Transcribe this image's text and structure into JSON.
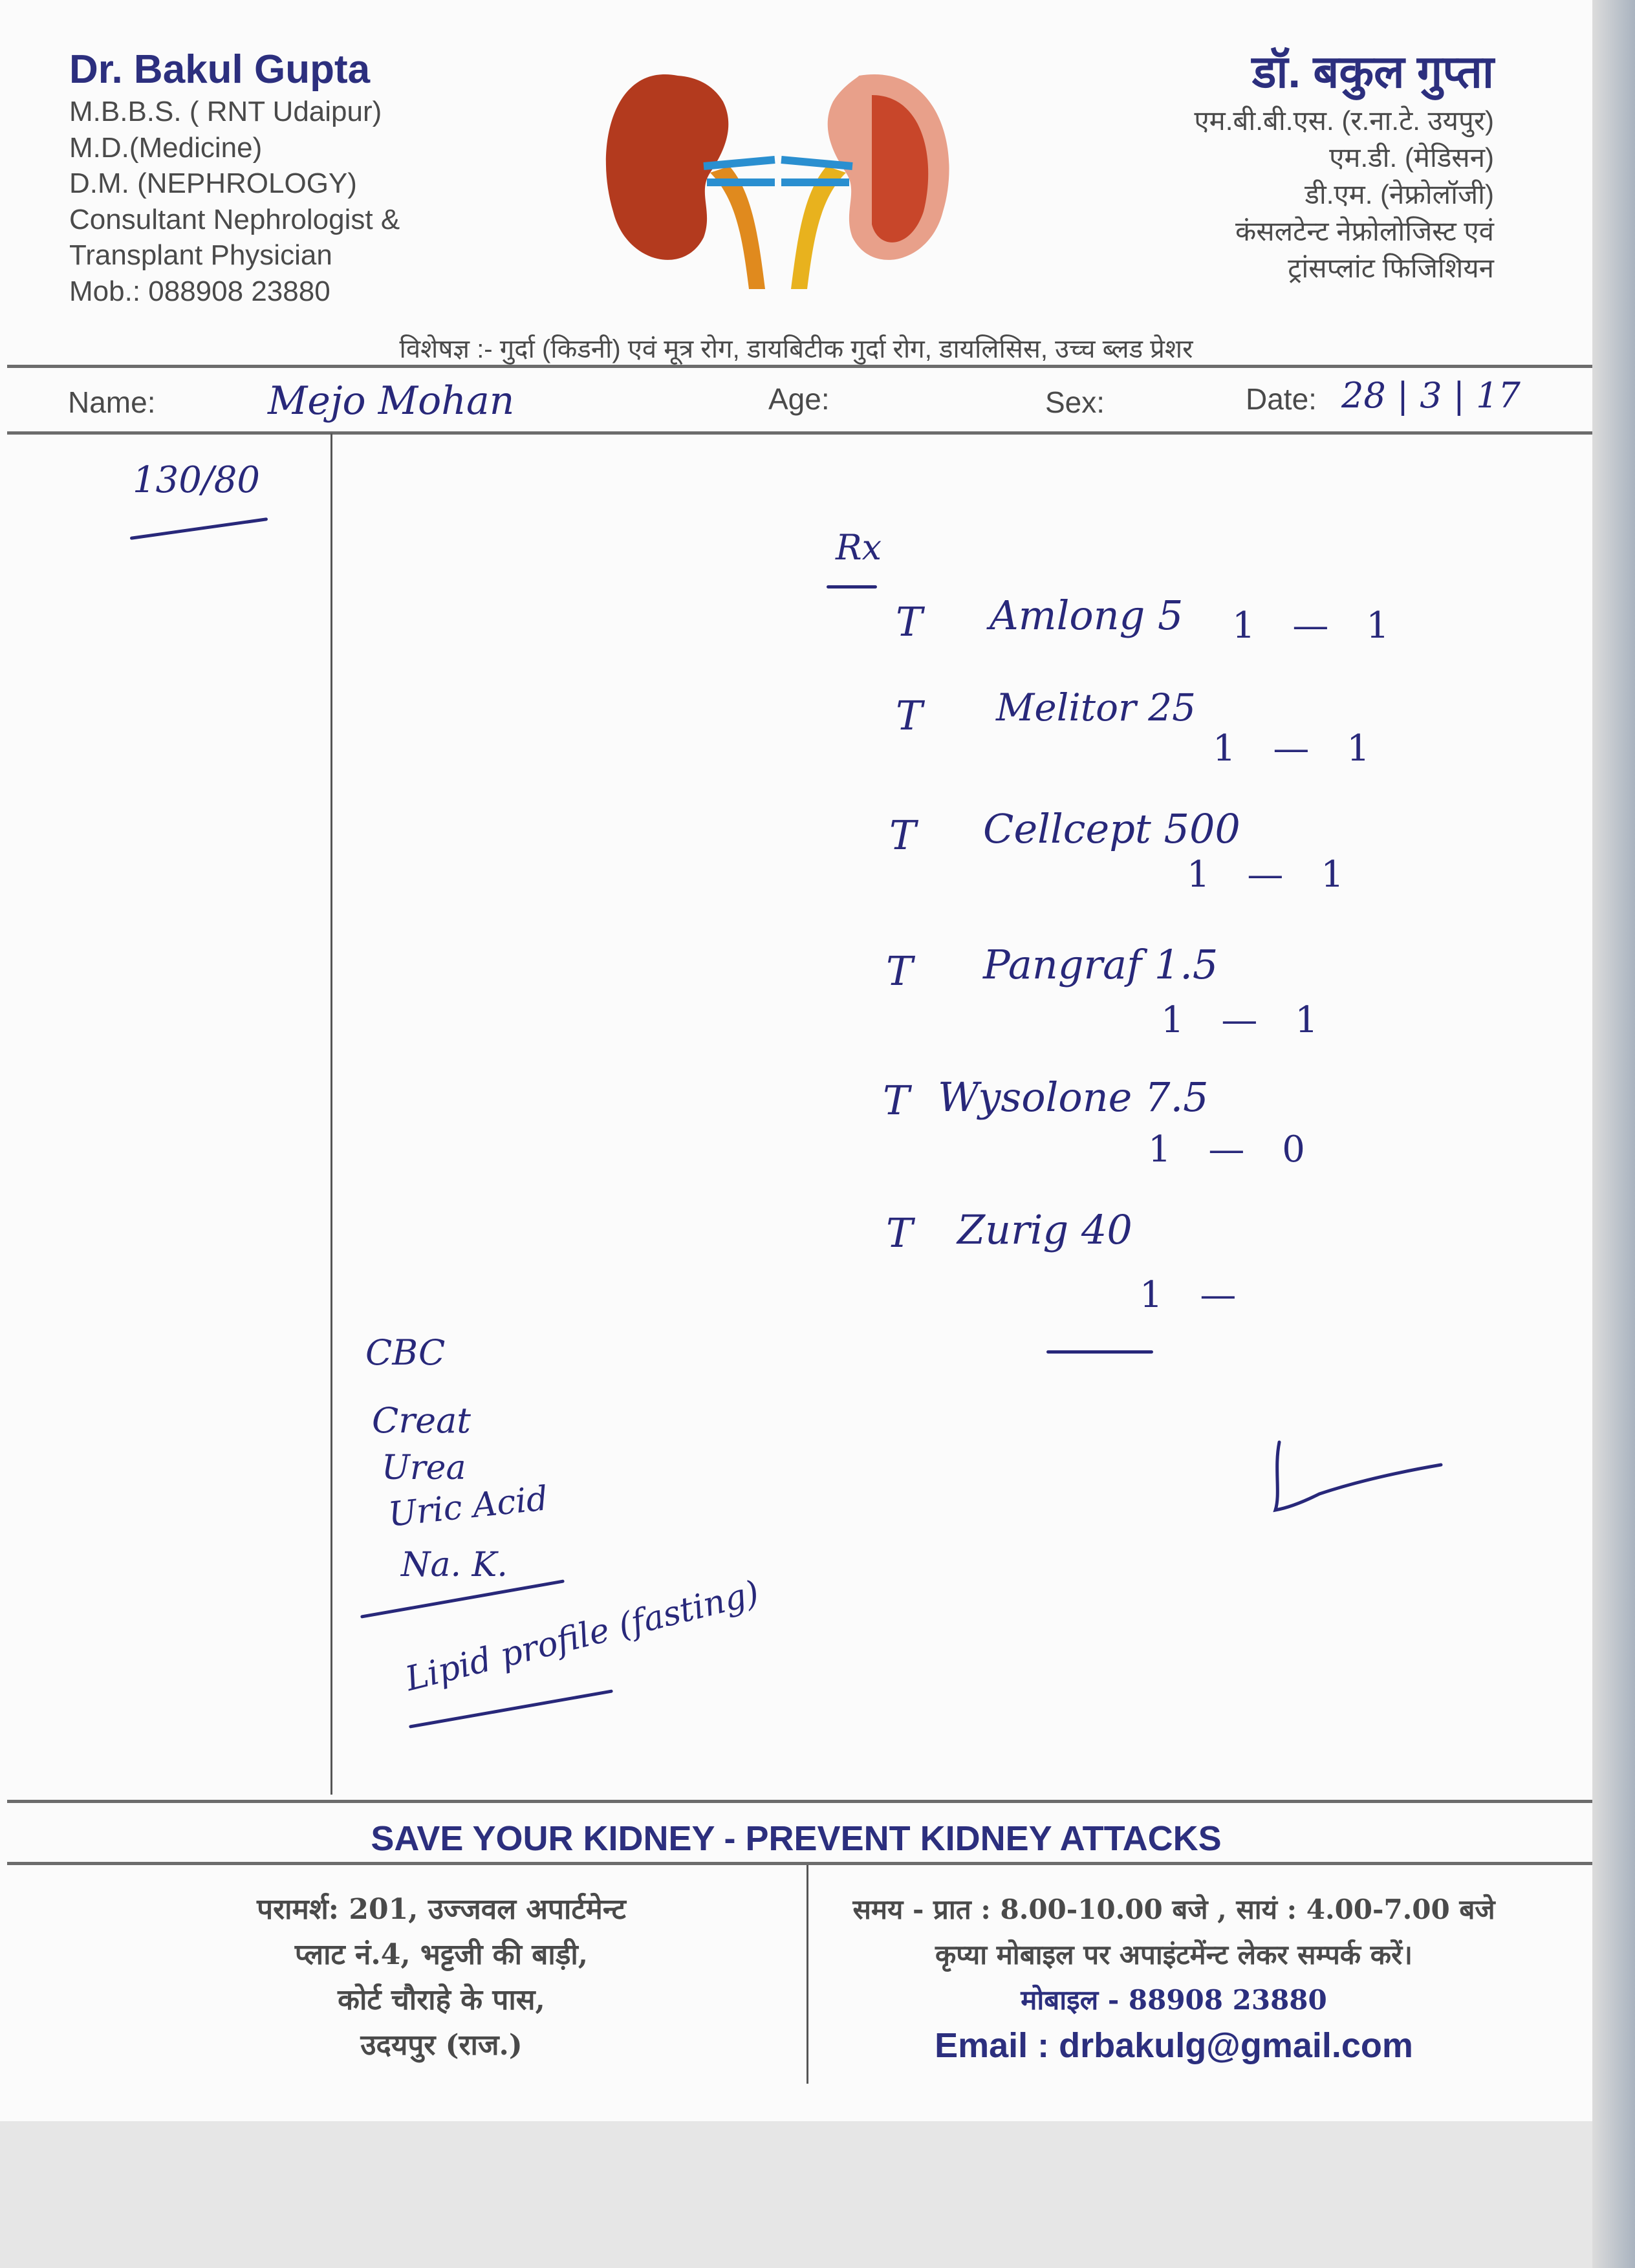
{
  "header": {
    "name_en": "Dr. Bakul Gupta",
    "qualifications_en": [
      "M.B.B.S. ( RNT Udaipur)",
      "M.D.(Medicine)",
      "D.M. (NEPHROLOGY)",
      "Consultant Nephrologist &",
      "Transplant Physician",
      "Mob.: 088908 23880"
    ],
    "name_hi": "डॉ. बकुल गुप्ता",
    "qualifications_hi": [
      "एम.बी.बी.एस. (र.ना.टे. उयपुर)",
      "एम.डी. (मेडिसन)",
      "डी.एम. (नेफ्रोलॉजी)",
      "कंसलटेन्ट नेफ्रोलोजिस्ट एवं",
      "ट्रांसप्लांट फिजिशियन"
    ],
    "specialty": "विशेषज्ञ :- गुर्दा (किडनी) एवं मूत्र रोग, डायबिटीक गुर्दा रोग, डायलिसिस, उच्च ब्लड प्रेशर",
    "logo": "kidney-illustration"
  },
  "patient": {
    "name_label": "Name:",
    "name_value": "Mejo Mohan",
    "age_label": "Age:",
    "sex_label": "Sex:",
    "date_label": "Date:",
    "date_value": "28 | 3 | 17"
  },
  "vitals": {
    "bp": "130/80"
  },
  "prescription": {
    "rx": "Rx",
    "medicines": [
      {
        "form": "T",
        "name": "Amlong 5",
        "dose": "1 — 1"
      },
      {
        "form": "T",
        "name": "Melitor 25",
        "dose": "1 — 1"
      },
      {
        "form": "T",
        "name": "Cellcept 500",
        "dose": "1 — 1"
      },
      {
        "form": "T",
        "name": "Pangraf 1.5",
        "dose": "1 — 1"
      },
      {
        "form": "T",
        "name": "Wysolone 7.5",
        "dose": "1 — 0"
      },
      {
        "form": "T",
        "name": "Zurig 40",
        "dose": "1 —"
      }
    ],
    "tests": [
      "CBC",
      "Creat",
      "Urea",
      "Uric Acid",
      "Na. K.",
      "Lipid profile (fasting)"
    ]
  },
  "footer": {
    "tagline": "SAVE YOUR KIDNEY - PREVENT KIDNEY ATTACKS",
    "address": [
      "परामर्श: 201, उज्जवल अपार्टमेन्ट",
      "प्लाट नं.4, भट्टजी की बाड़ी,",
      "कोर्ट चौराहे के पास,",
      "उदयपुर (राज.)"
    ],
    "timing": "समय - प्रात : 8.00-10.00 बजे , सायं : 4.00-7.00 बजे",
    "appointment": "कृप्या मोबाइल पर अपाइंटमेंन्ट लेकर सम्पर्क करें।",
    "mobile": "मोबाइल  - 88908 23880",
    "email": "Email : drbakulg@gmail.com"
  },
  "colors": {
    "brand": "#2c2f7e",
    "ink": "#28287a",
    "text": "#4a4a4a"
  }
}
